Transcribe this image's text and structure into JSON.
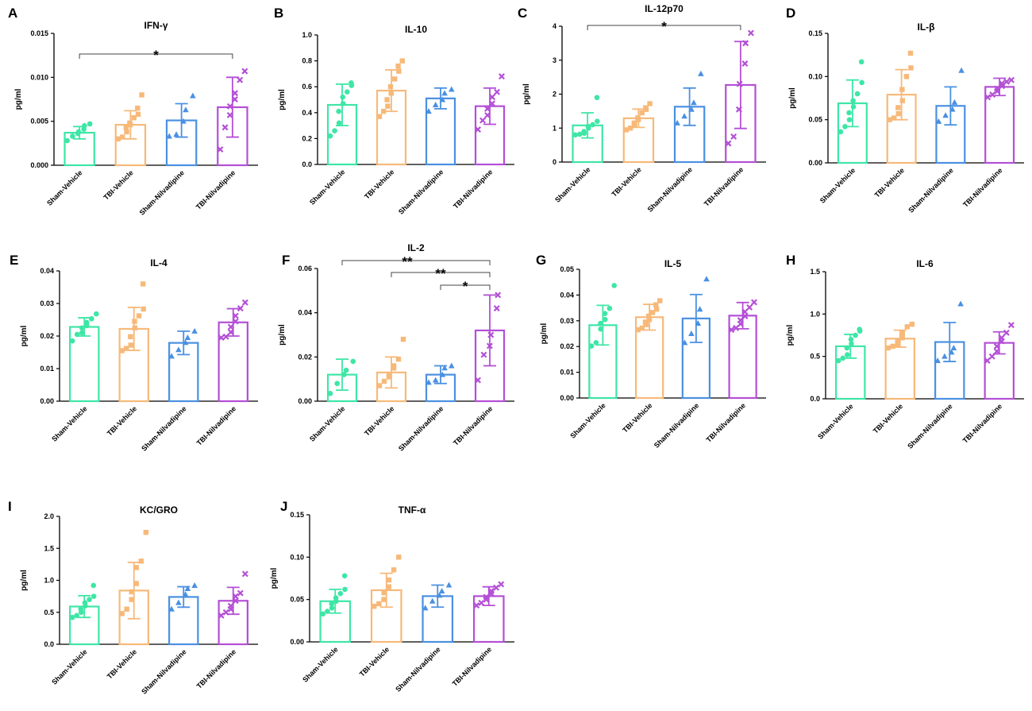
{
  "groups": [
    "Sham-Vehicle",
    "TBI-Vehicle",
    "Sham-Nilvadipine",
    "TBI-Nilvadipine"
  ],
  "group_colors": [
    "#3ee6a6",
    "#f7b979",
    "#4a90e2",
    "#b44fd6"
  ],
  "marker_shapes": [
    "circle",
    "square",
    "triangle",
    "cross"
  ],
  "y_axis_label": "pg/ml",
  "chart_data": [
    {
      "panel": "A",
      "type": "bar",
      "title": "IFN-γ",
      "ylabel": "pg/ml",
      "ylim": [
        0,
        0.015
      ],
      "yticks": [
        "0.000",
        "0.005",
        "0.010",
        "0.015"
      ],
      "categories": [
        "Sham-Vehicle",
        "TBI-Vehicle",
        "Sham-Nilvadipine",
        "TBI-Nilvadipine"
      ],
      "values": [
        0.0037,
        0.0046,
        0.0051,
        0.0066
      ],
      "sd": [
        0.0007,
        0.0016,
        0.0019,
        0.0034
      ],
      "points": [
        [
          0.0028,
          0.0033,
          0.0036,
          0.0038,
          0.0041,
          0.0045,
          0.0047
        ],
        [
          0.003,
          0.0032,
          0.0038,
          0.0043,
          0.0046,
          0.0048,
          0.0054,
          0.0058,
          0.0065,
          0.008
        ],
        [
          0.0033,
          0.0035,
          0.005,
          0.0063,
          0.0079
        ],
        [
          0.0018,
          0.0043,
          0.0057,
          0.0067,
          0.0075,
          0.0082,
          0.0097,
          0.0107
        ]
      ],
      "significance": [
        {
          "from": 0,
          "to": 3,
          "label": "*"
        }
      ]
    },
    {
      "panel": "B",
      "type": "bar",
      "title": "IL-10",
      "ylabel": "pg/ml",
      "ylim": [
        0,
        1.0
      ],
      "yticks": [
        "0.0",
        "0.2",
        "0.4",
        "0.6",
        "0.8",
        "1.0"
      ],
      "categories": [
        "Sham-Vehicle",
        "TBI-Vehicle",
        "Sham-Nilvadipine",
        "TBI-Nilvadipine"
      ],
      "values": [
        0.46,
        0.57,
        0.51,
        0.45
      ],
      "sd": [
        0.16,
        0.16,
        0.08,
        0.14
      ],
      "points": [
        [
          0.22,
          0.26,
          0.32,
          0.41,
          0.47,
          0.52,
          0.56,
          0.61,
          0.63
        ],
        [
          0.37,
          0.41,
          0.45,
          0.5,
          0.55,
          0.6,
          0.66,
          0.72,
          0.76,
          0.8
        ],
        [
          0.41,
          0.46,
          0.5,
          0.55,
          0.58
        ],
        [
          0.27,
          0.34,
          0.38,
          0.43,
          0.47,
          0.52,
          0.56,
          0.68
        ]
      ],
      "significance": []
    },
    {
      "panel": "C",
      "type": "bar",
      "title": "IL-12p70",
      "ylabel": "pg/ml",
      "ylim": [
        0,
        4
      ],
      "yticks": [
        "0",
        "1",
        "2",
        "3",
        "4"
      ],
      "categories": [
        "Sham-Vehicle",
        "TBI-Vehicle",
        "Sham-Nilvadipine",
        "TBI-Nilvadipine"
      ],
      "values": [
        1.08,
        1.29,
        1.63,
        2.27
      ],
      "sd": [
        0.37,
        0.27,
        0.55,
        1.28
      ],
      "points": [
        [
          0.8,
          0.82,
          0.85,
          0.9,
          1.0,
          1.05,
          1.1,
          1.2,
          1.9
        ],
        [
          0.95,
          1.0,
          1.1,
          1.15,
          1.25,
          1.3,
          1.45,
          1.55,
          1.6,
          1.72
        ],
        [
          1.15,
          1.35,
          1.55,
          1.75,
          2.6
        ],
        [
          0.55,
          0.75,
          1.55,
          2.3,
          2.9,
          3.5,
          3.8
        ]
      ],
      "significance": [
        {
          "from": 0,
          "to": 3,
          "label": "*"
        }
      ]
    },
    {
      "panel": "D",
      "type": "bar",
      "title": "IL-β",
      "ylabel": "pg/ml",
      "ylim": [
        0,
        0.15
      ],
      "yticks": [
        "0.00",
        "0.05",
        "0.10",
        "0.15"
      ],
      "categories": [
        "Sham-Vehicle",
        "TBI-Vehicle",
        "Sham-Nilvadipine",
        "TBI-Nilvadipine"
      ],
      "values": [
        0.069,
        0.079,
        0.066,
        0.088
      ],
      "sd": [
        0.027,
        0.029,
        0.022,
        0.01
      ],
      "points": [
        [
          0.036,
          0.042,
          0.05,
          0.058,
          0.065,
          0.072,
          0.08,
          0.093,
          0.117
        ],
        [
          0.05,
          0.052,
          0.057,
          0.064,
          0.072,
          0.085,
          0.1,
          0.11,
          0.127
        ],
        [
          0.048,
          0.055,
          0.062,
          0.07,
          0.107
        ],
        [
          0.076,
          0.079,
          0.083,
          0.086,
          0.089,
          0.092,
          0.094,
          0.096
        ]
      ],
      "significance": []
    },
    {
      "panel": "E",
      "type": "bar",
      "title": "IL-4",
      "ylabel": "pg/ml",
      "ylim": [
        0,
        0.04
      ],
      "yticks": [
        "0.00",
        "0.01",
        "0.02",
        "0.03",
        "0.04"
      ],
      "categories": [
        "Sham-Vehicle",
        "TBI-Vehicle",
        "Sham-Nilvadipine",
        "TBI-Nilvadipine"
      ],
      "values": [
        0.0228,
        0.0222,
        0.0179,
        0.0242
      ],
      "sd": [
        0.0028,
        0.0066,
        0.0036,
        0.0042
      ],
      "points": [
        [
          0.0185,
          0.0205,
          0.021,
          0.0225,
          0.0232,
          0.0242,
          0.0253,
          0.0268
        ],
        [
          0.0155,
          0.0162,
          0.0172,
          0.0198,
          0.0225,
          0.0245,
          0.0262,
          0.0283,
          0.036
        ],
        [
          0.0138,
          0.0158,
          0.018,
          0.0195,
          0.0215
        ],
        [
          0.0195,
          0.0198,
          0.0212,
          0.0228,
          0.0245,
          0.0262,
          0.0285,
          0.0303
        ]
      ],
      "significance": []
    },
    {
      "panel": "F",
      "type": "bar",
      "title": "IL-2",
      "ylabel": "pg/ml",
      "ylim": [
        0,
        0.06
      ],
      "yticks": [
        "0.00",
        "0.02",
        "0.04",
        "0.06"
      ],
      "categories": [
        "Sham-Vehicle",
        "TBI-Vehicle",
        "Sham-Nilvadipine",
        "TBI-Nilvadipine"
      ],
      "values": [
        0.012,
        0.013,
        0.012,
        0.032
      ],
      "sd": [
        0.007,
        0.007,
        0.004,
        0.016
      ],
      "points": [
        [
          0.0035,
          0.008,
          0.012,
          0.014,
          0.018
        ],
        [
          0.007,
          0.009,
          0.011,
          0.012,
          0.015,
          0.016,
          0.019,
          0.028
        ],
        [
          0.0085,
          0.0095,
          0.012,
          0.015,
          0.016
        ],
        [
          0.0095,
          0.021,
          0.025,
          0.03,
          0.042,
          0.048
        ]
      ],
      "significance": [
        {
          "from": 0,
          "to": 3,
          "label": "**"
        },
        {
          "from": 1,
          "to": 3,
          "label": "**"
        },
        {
          "from": 2,
          "to": 3,
          "label": "*"
        }
      ]
    },
    {
      "panel": "G",
      "type": "bar",
      "title": "IL-5",
      "ylabel": "pg/ml",
      "ylim": [
        0,
        0.05
      ],
      "yticks": [
        "0.00",
        "0.01",
        "0.02",
        "0.03",
        "0.04",
        "0.05"
      ],
      "categories": [
        "Sham-Vehicle",
        "TBI-Vehicle",
        "Sham-Nilvadipine",
        "TBI-Nilvadipine"
      ],
      "values": [
        0.0283,
        0.0314,
        0.0309,
        0.032
      ],
      "sd": [
        0.0077,
        0.005,
        0.0093,
        0.0051
      ],
      "points": [
        [
          0.0202,
          0.0215,
          0.0268,
          0.029,
          0.0305,
          0.0328,
          0.0348,
          0.0437
        ],
        [
          0.0265,
          0.0272,
          0.0285,
          0.0295,
          0.0305,
          0.0318,
          0.0332,
          0.0345,
          0.0362,
          0.0378
        ],
        [
          0.0215,
          0.025,
          0.029,
          0.0345,
          0.0462
        ],
        [
          0.0265,
          0.0272,
          0.0288,
          0.0302,
          0.0318,
          0.0335,
          0.0352,
          0.0372
        ]
      ],
      "significance": []
    },
    {
      "panel": "H",
      "type": "bar",
      "title": "IL-6",
      "ylabel": "pg/ml",
      "ylim": [
        0,
        1.5
      ],
      "yticks": [
        "0.0",
        "0.5",
        "1.0",
        "1.5"
      ],
      "categories": [
        "Sham-Vehicle",
        "TBI-Vehicle",
        "Sham-Nilvadipine",
        "TBI-Nilvadipine"
      ],
      "values": [
        0.62,
        0.71,
        0.67,
        0.66
      ],
      "sd": [
        0.14,
        0.1,
        0.23,
        0.13
      ],
      "points": [
        [
          0.45,
          0.48,
          0.52,
          0.6,
          0.65,
          0.7,
          0.75,
          0.8,
          0.82
        ],
        [
          0.6,
          0.62,
          0.64,
          0.68,
          0.72,
          0.78,
          0.85,
          0.88
        ],
        [
          0.45,
          0.5,
          0.55,
          0.6,
          1.12
        ],
        [
          0.45,
          0.5,
          0.56,
          0.62,
          0.68,
          0.72,
          0.78,
          0.87
        ]
      ],
      "significance": []
    },
    {
      "panel": "I",
      "type": "bar",
      "title": "KC/GRO",
      "ylabel": "pg/ml",
      "ylim": [
        0,
        2.0
      ],
      "yticks": [
        "0.0",
        "0.5",
        "1.0",
        "1.5",
        "2.0"
      ],
      "categories": [
        "Sham-Vehicle",
        "TBI-Vehicle",
        "Sham-Nilvadipine",
        "TBI-Nilvadipine"
      ],
      "values": [
        0.59,
        0.84,
        0.74,
        0.68
      ],
      "sd": [
        0.17,
        0.44,
        0.16,
        0.21
      ],
      "points": [
        [
          0.42,
          0.45,
          0.5,
          0.55,
          0.6,
          0.65,
          0.7,
          0.75,
          0.92
        ],
        [
          0.48,
          0.55,
          0.7,
          0.82,
          0.95,
          1.2,
          1.3,
          1.75
        ],
        [
          0.55,
          0.65,
          0.78,
          0.87,
          0.92
        ],
        [
          0.45,
          0.5,
          0.55,
          0.6,
          0.68,
          0.75,
          0.8,
          1.1
        ]
      ],
      "significance": []
    },
    {
      "panel": "J",
      "type": "bar",
      "title": "TNF-α",
      "ylabel": "pg/ml",
      "ylim": [
        0,
        0.15
      ],
      "yticks": [
        "0.00",
        "0.05",
        "0.10",
        "0.15"
      ],
      "categories": [
        "Sham-Vehicle",
        "TBI-Vehicle",
        "Sham-Nilvadipine",
        "TBI-Nilvadipine"
      ],
      "values": [
        0.048,
        0.061,
        0.054,
        0.054
      ],
      "sd": [
        0.014,
        0.02,
        0.013,
        0.011
      ],
      "points": [
        [
          0.033,
          0.036,
          0.04,
          0.045,
          0.048,
          0.052,
          0.057,
          0.062,
          0.078
        ],
        [
          0.042,
          0.045,
          0.05,
          0.058,
          0.065,
          0.073,
          0.085,
          0.1
        ],
        [
          0.04,
          0.048,
          0.055,
          0.06,
          0.067
        ],
        [
          0.043,
          0.046,
          0.05,
          0.053,
          0.057,
          0.06,
          0.064,
          0.068
        ]
      ],
      "significance": []
    }
  ]
}
